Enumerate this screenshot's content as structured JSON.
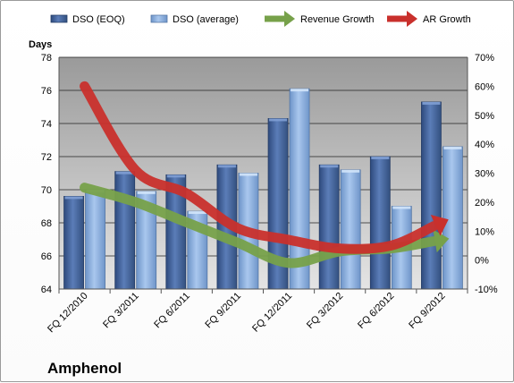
{
  "chart_data": {
    "type": "bar",
    "title": "",
    "company": "Amphenol",
    "ylabel": "Days",
    "ylim": [
      64,
      78
    ],
    "y_ticks": [
      64,
      66,
      68,
      70,
      72,
      74,
      76,
      78
    ],
    "y2lim": [
      -10,
      70
    ],
    "y2_ticks": [
      "-10%",
      "0%",
      "10%",
      "20%",
      "30%",
      "40%",
      "50%",
      "60%",
      "70%"
    ],
    "y2_tick_values": [
      -10,
      0,
      10,
      20,
      30,
      40,
      50,
      60,
      70
    ],
    "categories": [
      "FQ 12/2010",
      "FQ 3/2011",
      "FQ 6/2011",
      "FQ 9/2011",
      "FQ 12/2011",
      "FQ 3/2012",
      "FQ 6/2012",
      "FQ 9/2012"
    ],
    "series": [
      {
        "name": "DSO (EOQ)",
        "kind": "bar",
        "axis": "left",
        "color": "#4f6fa8",
        "values": [
          69.6,
          71.1,
          70.9,
          71.5,
          74.3,
          71.5,
          72.0,
          75.3
        ]
      },
      {
        "name": "DSO (average)",
        "kind": "bar",
        "axis": "left",
        "color": "#8fb4e3",
        "values": [
          70.0,
          69.9,
          68.7,
          71.0,
          76.1,
          71.2,
          69.0,
          72.6
        ]
      },
      {
        "name": "Revenue Growth",
        "kind": "line",
        "axis": "right",
        "color": "#77a14a",
        "values": [
          25,
          20,
          13,
          6,
          -1,
          3,
          4,
          7
        ]
      },
      {
        "name": "AR Growth",
        "kind": "line",
        "axis": "right",
        "color": "#c9302c",
        "values": [
          60,
          31,
          23,
          11,
          7,
          4,
          5,
          13
        ]
      }
    ],
    "grid": true,
    "legend_position": "top"
  }
}
